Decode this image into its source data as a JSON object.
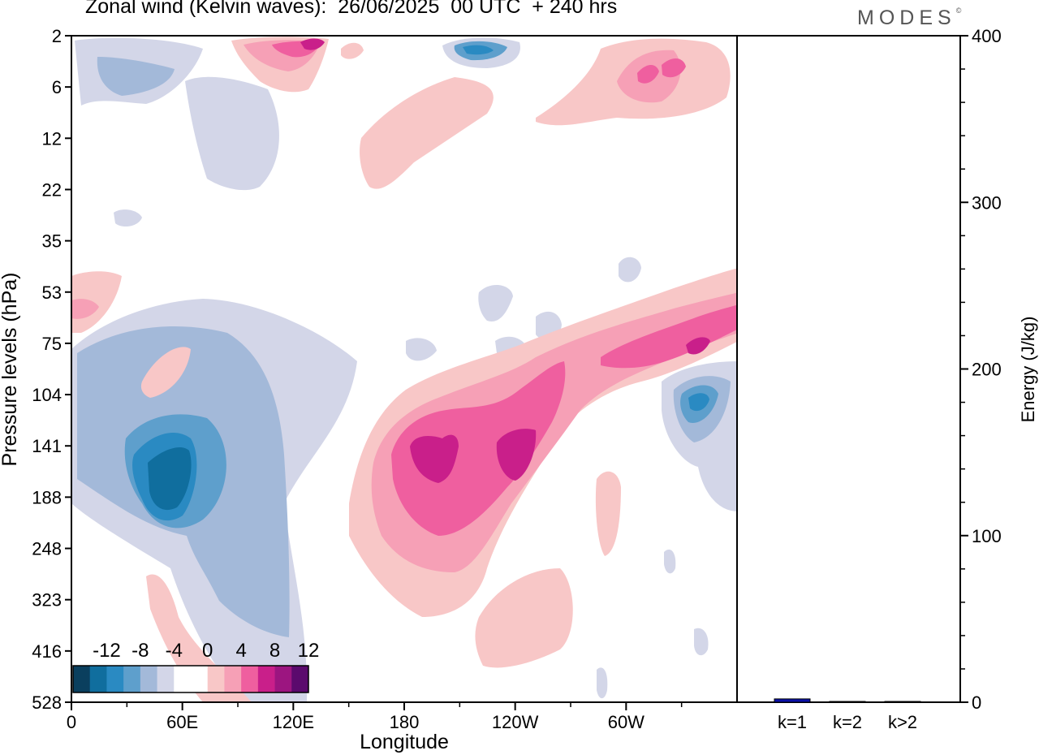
{
  "header": {
    "title": "Zonal wind (Kelvin waves):  26/06/2025  00 UTC  + 240 hrs",
    "brand": "MODES",
    "brand_mark": "©"
  },
  "chart_data": [
    {
      "type": "heatmap",
      "title": "Zonal wind (Kelvin waves):  26/06/2025  00 UTC  + 240 hrs",
      "xlabel": "Longitude",
      "ylabel": "Pressure levels (hPa)",
      "x_ticks": [
        "0",
        "60E",
        "120E",
        "180",
        "120W",
        "60W"
      ],
      "x_tick_values": [
        0,
        60,
        120,
        180,
        240,
        300
      ],
      "x_range": [
        0,
        360
      ],
      "y_ticks": [
        "2",
        "6",
        "12",
        "22",
        "35",
        "53",
        "75",
        "104",
        "141",
        "188",
        "248",
        "323",
        "416",
        "528"
      ],
      "y_scale": "log-pressure (top = 2 hPa, bottom = 528 hPa)",
      "colorbar": {
        "labels": [
          "-12",
          "-8",
          "-4",
          "0",
          "4",
          "8",
          "12"
        ],
        "colors": [
          "#0a3f5e",
          "#106e9e",
          "#2a8ac2",
          "#5e9fcc",
          "#a3b9d9",
          "#d3d6e8",
          "#ffffff",
          "#ffffff",
          "#f8c7c7",
          "#f6a0b6",
          "#ef5f9f",
          "#c91f8a",
          "#9c1580",
          "#5b0a6d"
        ]
      },
      "features": [
        {
          "sign": "negative",
          "max_abs": 12,
          "lon": 55,
          "p": 160
        },
        {
          "sign": "positive",
          "max_abs": 10,
          "lon": 200,
          "p": 141
        },
        {
          "sign": "positive",
          "max_abs": 10,
          "lon": 240,
          "p": 141
        },
        {
          "sign": "positive",
          "max_abs": 8,
          "lon": 333,
          "p": 80
        },
        {
          "sign": "negative",
          "max_abs": 10,
          "lon": 335,
          "p": 120
        },
        {
          "sign": "negative",
          "max_abs": 10,
          "lon": 213,
          "p": 3
        },
        {
          "sign": "positive",
          "max_abs": 8,
          "lon": 130,
          "p": 3
        }
      ]
    },
    {
      "type": "bar",
      "ylabel": "Energy (J/kg)",
      "categories": [
        "k=1",
        "k=2",
        "k>2"
      ],
      "values": [
        2.0,
        0.3,
        0.3
      ],
      "ylim": [
        0,
        400
      ],
      "y_ticks": [
        "0",
        "100",
        "200",
        "300",
        "400"
      ],
      "bar_color": "#0a10a8"
    }
  ]
}
